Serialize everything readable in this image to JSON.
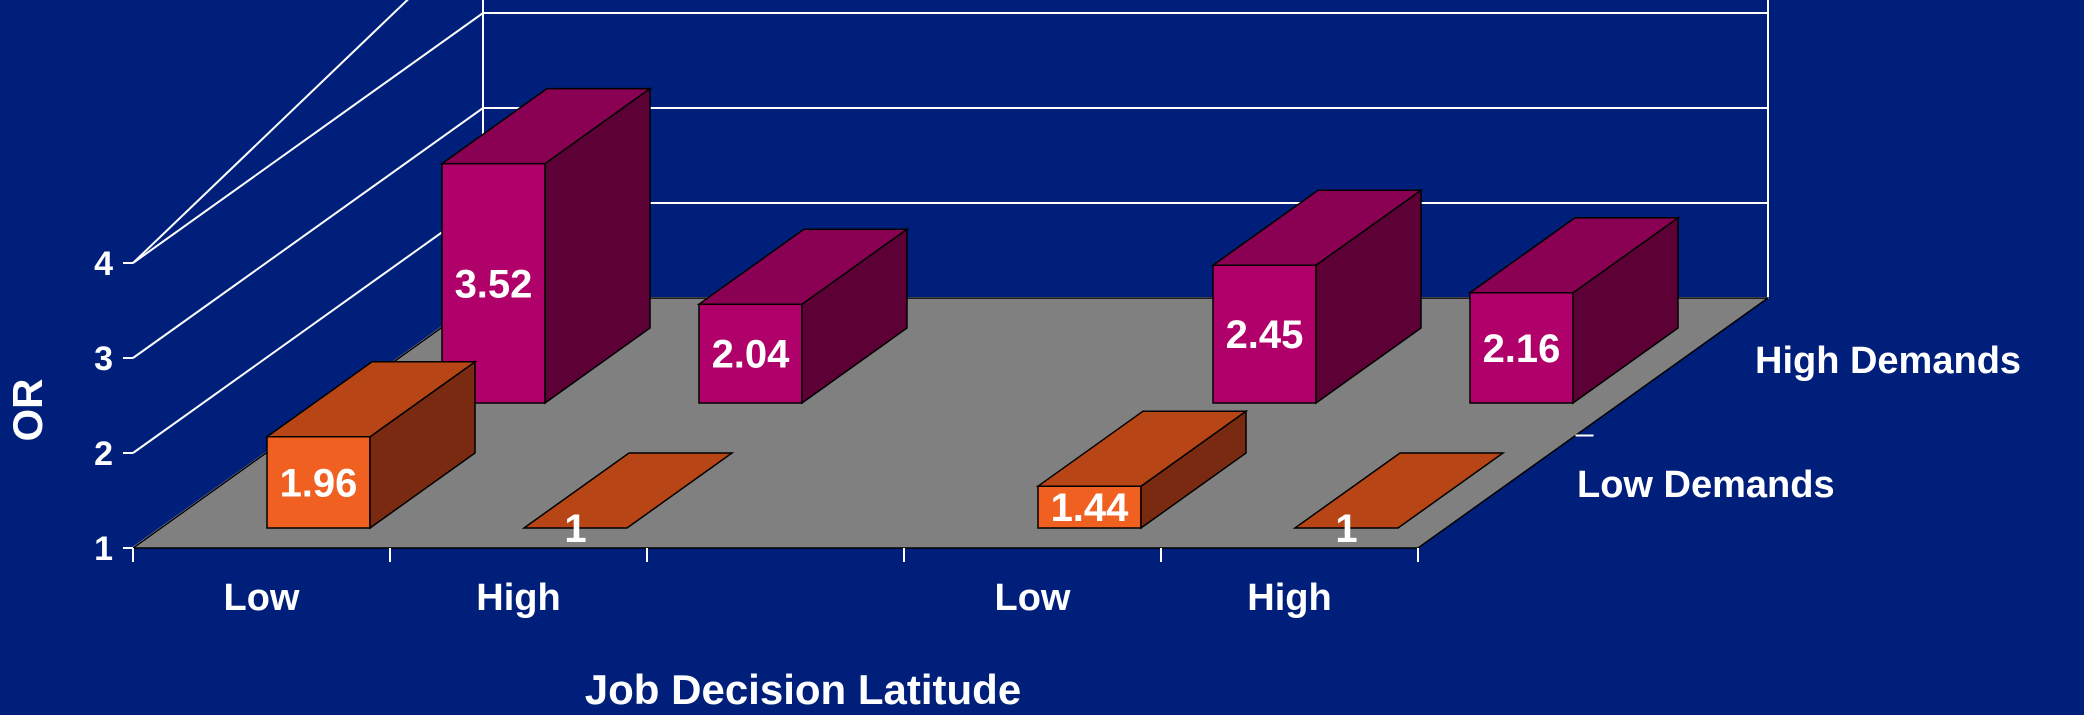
{
  "colors": {
    "background": "#001f7a",
    "wall_line": "#ffffff",
    "floor": "#808080",
    "high_front": "#b0006a",
    "high_top": "#8a0052",
    "high_side": "#5c0035",
    "low_front": "#f06020",
    "low_top": "#b84515",
    "low_side": "#7a2a10"
  },
  "chart_data": {
    "type": "bar",
    "subtype": "3d-grouped",
    "title": "",
    "xlabel": "Job Decision Latitude",
    "ylabel": "OR",
    "ylim": [
      1,
      4
    ],
    "yticks": [
      "1",
      "2",
      "3",
      "4"
    ],
    "categories": [
      "Low",
      "High",
      "Low",
      "High"
    ],
    "series": [
      {
        "name": "Low Demands",
        "values": [
          1.96,
          1,
          1.44,
          1
        ],
        "labels": [
          "1.96",
          "1",
          "1.44",
          "1"
        ]
      },
      {
        "name": "High Demands",
        "values": [
          3.52,
          2.04,
          2.45,
          2.16
        ],
        "labels": [
          "3.52",
          "2.04",
          "2.45",
          "2.16"
        ]
      }
    ],
    "depth_labels": [
      "Low Demands",
      "High Demands"
    ],
    "grid": true
  }
}
